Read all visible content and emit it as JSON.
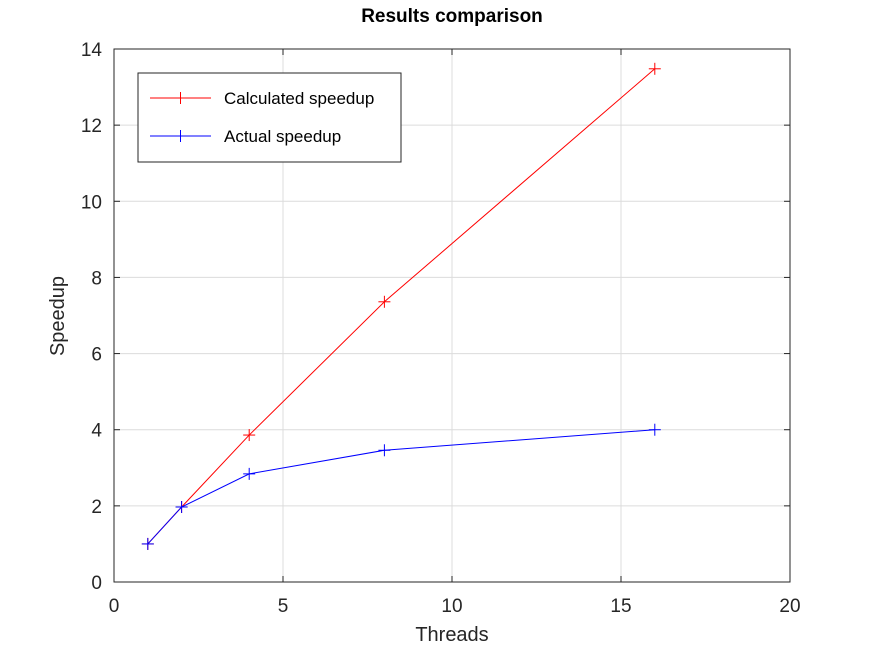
{
  "chart_data": {
    "type": "line",
    "title": "Results comparison",
    "xlabel": "Threads",
    "ylabel": "Speedup",
    "xlim": [
      0,
      20
    ],
    "ylim": [
      0,
      14
    ],
    "xticks": [
      0,
      5,
      10,
      15,
      20
    ],
    "yticks": [
      0,
      2,
      4,
      6,
      8,
      10,
      12,
      14
    ],
    "grid": true,
    "legend_position": "top-left",
    "marker": "plus",
    "series": [
      {
        "name": "Calculated speedup",
        "color": "#ff0000",
        "x": [
          1,
          2,
          4,
          8,
          16
        ],
        "y": [
          1.0,
          1.97,
          3.86,
          7.36,
          13.48
        ]
      },
      {
        "name": "Actual speedup",
        "color": "#0000ff",
        "x": [
          1,
          2,
          4,
          8,
          16
        ],
        "y": [
          1.0,
          1.97,
          2.84,
          3.46,
          4.0
        ]
      }
    ]
  }
}
